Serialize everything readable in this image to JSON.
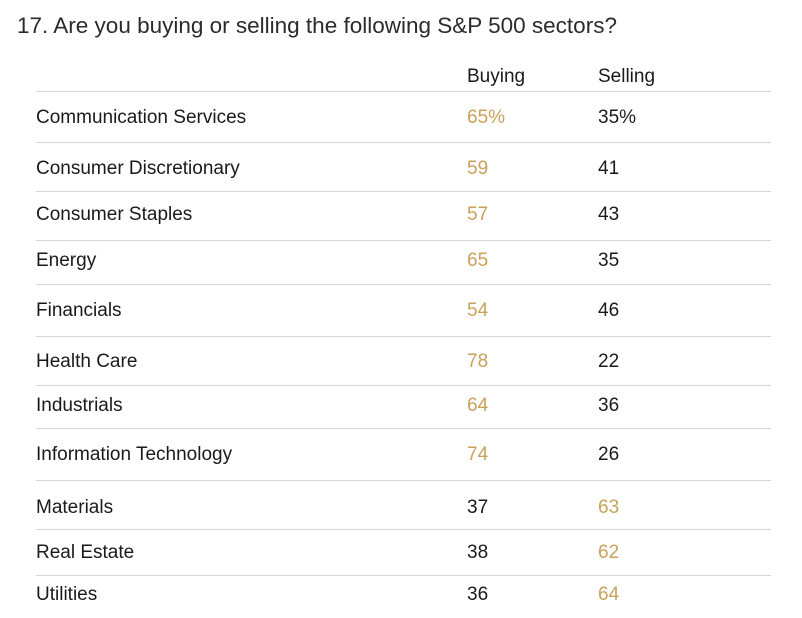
{
  "question": {
    "title": "17. Are you buying or selling the following S&P 500 sectors?"
  },
  "columns": {
    "buying": "Buying",
    "selling": "Selling"
  },
  "colors": {
    "highlight": "#c9a15a",
    "text": "#1a1a1a",
    "divider": "#d4d4d4"
  },
  "rows": [
    {
      "sector": "Communication Services",
      "buying": "65%",
      "selling": "35%",
      "majority": "buying"
    },
    {
      "sector": "Consumer Discretionary",
      "buying": "59",
      "selling": "41",
      "majority": "buying"
    },
    {
      "sector": "Consumer Staples",
      "buying": "57",
      "selling": "43",
      "majority": "buying"
    },
    {
      "sector": "Energy",
      "buying": "65",
      "selling": "35",
      "majority": "buying"
    },
    {
      "sector": "Financials",
      "buying": "54",
      "selling": "46",
      "majority": "buying"
    },
    {
      "sector": "Health Care",
      "buying": "78",
      "selling": "22",
      "majority": "buying"
    },
    {
      "sector": "Industrials",
      "buying": "64",
      "selling": "36",
      "majority": "buying"
    },
    {
      "sector": "Information Technology",
      "buying": "74",
      "selling": "26",
      "majority": "buying"
    },
    {
      "sector": "Materials",
      "buying": "37",
      "selling": "63",
      "majority": "selling"
    },
    {
      "sector": "Real Estate",
      "buying": "38",
      "selling": "62",
      "majority": "selling"
    },
    {
      "sector": "Utilities",
      "buying": "36",
      "selling": "64",
      "majority": "selling"
    }
  ]
}
